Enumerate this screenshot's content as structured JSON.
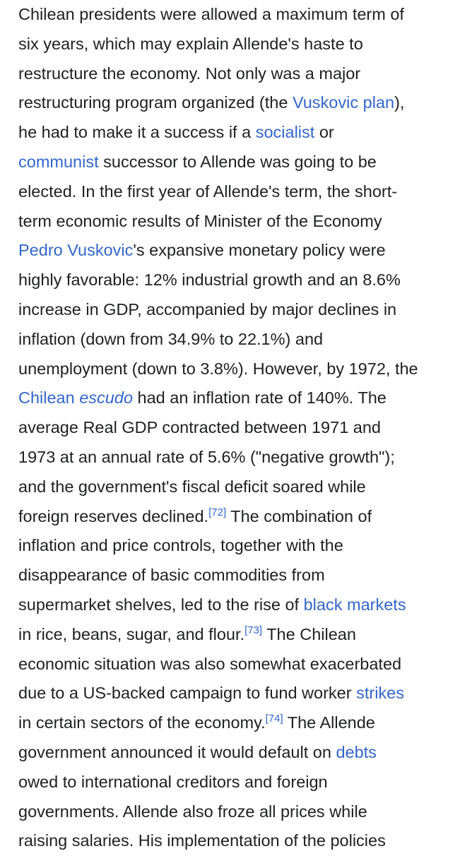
{
  "paragraph": {
    "lines": [
      [
        "Chilean presidents were allowed a maximum term of"
      ],
      [
        "six years, which may explain Allende's haste to"
      ],
      [
        "restructure the economy. Not only was a major"
      ],
      [
        "restructuring program organized (the ",
        "Vuskovic plan",
        "),"
      ],
      [
        "he had to make it a success if a ",
        "socialist",
        " or"
      ],
      [
        "communist",
        " successor to Allende was going to be"
      ],
      [
        "elected. In the first year of Allende's term, the short-"
      ],
      [
        "term economic results of Minister of the Economy"
      ],
      [
        "Pedro Vuskovic",
        "'s expansive monetary policy were"
      ],
      [
        "highly favorable: 12% industrial growth and an 8.6%"
      ],
      [
        "increase in GDP, accompanied by major declines in"
      ],
      [
        "inflation (down from 34.9% to 22.1%) and"
      ],
      [
        "unemployment (down to 3.8%). However, by 1972, the"
      ],
      [
        "Chilean ",
        "escudo",
        " had an inflation rate of 140%. The"
      ],
      [
        "average Real GDP contracted between 1971 and"
      ],
      [
        "1973 at an annual rate of 5.6% (\"negative growth\");"
      ],
      [
        "and the government's fiscal deficit soared while"
      ],
      [
        "foreign reserves declined.",
        "[72]",
        " The combination of"
      ],
      [
        "inflation and price controls, together with the"
      ],
      [
        "disappearance of basic commodities from"
      ],
      [
        "supermarket shelves, led to the rise of ",
        "black markets"
      ],
      [
        "in rice, beans, sugar, and flour.",
        "[73]",
        " The Chilean"
      ],
      [
        "economic situation was also somewhat exacerbated"
      ],
      [
        "due to a US-backed campaign to fund worker ",
        "strikes"
      ],
      [
        "in certain sectors of the economy.",
        "[74]",
        " The Allende"
      ],
      [
        "government announced it would default on ",
        "debts"
      ],
      [
        "owed to international creditors and foreign"
      ],
      [
        "governments. Allende also froze all prices while"
      ],
      [
        "raising salaries. His implementation of the policies"
      ]
    ]
  }
}
